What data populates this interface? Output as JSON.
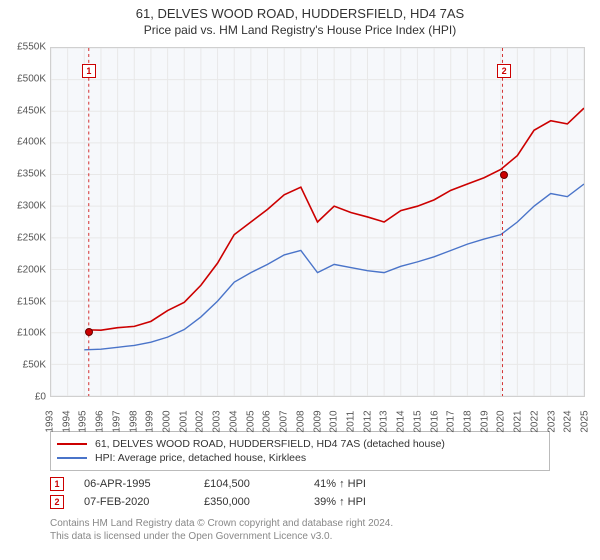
{
  "title": "61, DELVES WOOD ROAD, HUDDERSFIELD, HD4 7AS",
  "subtitle": "Price paid vs. HM Land Registry's House Price Index (HPI)",
  "chart": {
    "background_color": "#f6f8fb",
    "grid_color": "#e8e8e8",
    "border_color": "#d0d0d0",
    "y": {
      "min": 0,
      "max": 550000,
      "step": 50000,
      "labels": [
        "£0",
        "£50K",
        "£100K",
        "£150K",
        "£200K",
        "£250K",
        "£300K",
        "£350K",
        "£400K",
        "£450K",
        "£500K",
        "£550K"
      ]
    },
    "x": {
      "min": 1993,
      "max": 2025,
      "step": 1,
      "labels": [
        "1993",
        "1994",
        "1995",
        "1996",
        "1997",
        "1998",
        "1999",
        "2000",
        "2001",
        "2002",
        "2003",
        "2004",
        "2005",
        "2006",
        "2007",
        "2008",
        "2009",
        "2010",
        "2011",
        "2012",
        "2013",
        "2014",
        "2015",
        "2016",
        "2017",
        "2018",
        "2019",
        "2020",
        "2021",
        "2022",
        "2023",
        "2024",
        "2025"
      ]
    },
    "series": [
      {
        "name": "61, DELVES WOOD ROAD, HUDDERSFIELD, HD4 7AS (detached house)",
        "color": "#cc0000",
        "width": 1.6,
        "x": [
          1995.27,
          1996,
          1997,
          1998,
          1999,
          2000,
          2001,
          2002,
          2003,
          2004,
          2005,
          2006,
          2007,
          2008,
          2009,
          2010,
          2011,
          2012,
          2013,
          2014,
          2015,
          2016,
          2017,
          2018,
          2019,
          2020,
          2021,
          2022,
          2023,
          2024,
          2025
        ],
        "y": [
          104500,
          104000,
          108000,
          110000,
          118000,
          135000,
          148000,
          175000,
          210000,
          255000,
          275000,
          295000,
          318000,
          330000,
          275000,
          300000,
          290000,
          283000,
          275000,
          293000,
          300000,
          310000,
          325000,
          335000,
          345000,
          358000,
          380000,
          420000,
          435000,
          430000,
          455000
        ]
      },
      {
        "name": "HPI: Average price, detached house, Kirklees",
        "color": "#4a74c9",
        "width": 1.4,
        "x": [
          1995,
          1996,
          1997,
          1998,
          1999,
          2000,
          2001,
          2002,
          2003,
          2004,
          2005,
          2006,
          2007,
          2008,
          2009,
          2010,
          2011,
          2012,
          2013,
          2014,
          2015,
          2016,
          2017,
          2018,
          2019,
          2020,
          2021,
          2022,
          2023,
          2024,
          2025
        ],
        "y": [
          73000,
          74000,
          77000,
          80000,
          85000,
          93000,
          105000,
          125000,
          150000,
          180000,
          195000,
          208000,
          223000,
          230000,
          195000,
          208000,
          203000,
          198000,
          195000,
          205000,
          212000,
          220000,
          230000,
          240000,
          248000,
          255000,
          275000,
          300000,
          320000,
          315000,
          335000
        ]
      }
    ],
    "sale_points": [
      {
        "n": "1",
        "year": 1995.27,
        "price": 104500,
        "color": "#cc0000"
      },
      {
        "n": "2",
        "year": 2020.1,
        "price": 350000,
        "color": "#cc0000"
      }
    ]
  },
  "legend": [
    {
      "color": "#cc0000",
      "label": "61, DELVES WOOD ROAD, HUDDERSFIELD, HD4 7AS (detached house)"
    },
    {
      "color": "#4a74c9",
      "label": "HPI: Average price, detached house, Kirklees"
    }
  ],
  "sales": [
    {
      "n": "1",
      "color": "#cc0000",
      "date": "06-APR-1995",
      "price": "£104,500",
      "pct": "41% ↑ HPI"
    },
    {
      "n": "2",
      "color": "#cc0000",
      "date": "07-FEB-2020",
      "price": "£350,000",
      "pct": "39% ↑ HPI"
    }
  ],
  "footnote1": "Contains HM Land Registry data © Crown copyright and database right 2024.",
  "footnote2": "This data is licensed under the Open Government Licence v3.0."
}
